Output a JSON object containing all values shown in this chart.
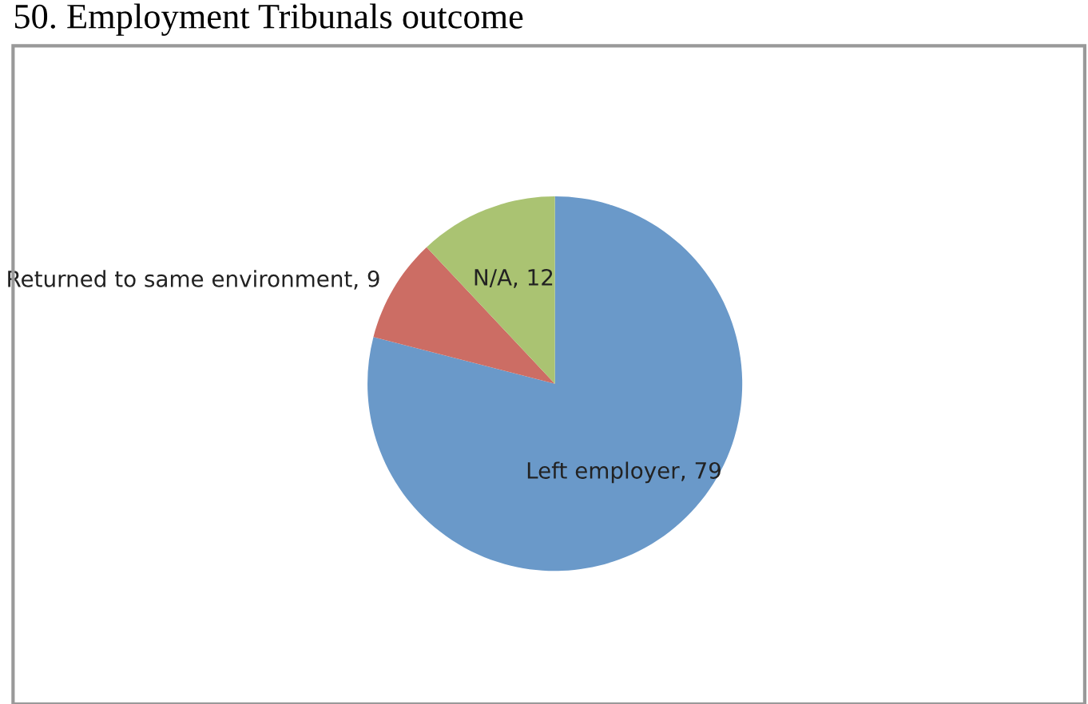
{
  "chart_data": {
    "type": "pie",
    "title": "50. Employment Tribunals outcome",
    "categories": [
      "Left employer",
      "Returned to same environment",
      "N/A"
    ],
    "values": [
      79,
      9,
      12
    ],
    "colors": [
      "#6a99c9",
      "#cc6d64",
      "#aac372"
    ],
    "value_labels": [
      ", 79",
      ", 9",
      ", 12"
    ],
    "legend": false
  }
}
